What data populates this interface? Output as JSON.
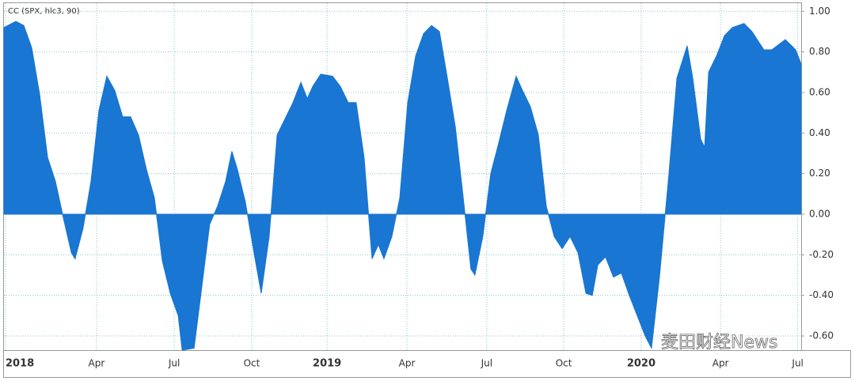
{
  "chart_data": {
    "type": "area",
    "title": "CC (SPX, hlc3, 90)",
    "watermark": "麦田财经News",
    "x": [
      -0.06,
      0.39,
      0.69,
      0.99,
      1.29,
      1.59,
      1.89,
      2.19,
      2.49,
      2.63,
      2.93,
      3.23,
      3.53,
      3.83,
      4.13,
      4.43,
      4.73,
      5.03,
      5.33,
      5.63,
      5.93,
      6.23,
      6.53,
      6.68,
      7.13,
      7.43,
      7.72,
      8.02,
      8.32,
      8.56,
      8.77,
      9.07,
      9.37,
      9.67,
      9.97,
      10.27,
      10.57,
      10.87,
      11.17,
      11.41,
      11.62,
      11.92,
      12.37,
      12.66,
      12.96,
      13.26,
      13.56,
      13.86,
      14.1,
      14.31,
      14.61,
      14.91,
      15.21,
      15.51,
      15.81,
      16.11,
      16.41,
      16.71,
      17.01,
      17.31,
      17.6,
      17.75,
      18.05,
      18.35,
      18.65,
      18.95,
      19.31,
      19.55,
      19.85,
      20.15,
      20.45,
      20.75,
      21.05,
      21.35,
      21.65,
      21.95,
      22.19,
      22.4,
      22.69,
      22.99,
      23.29,
      23.59,
      23.89,
      24.19,
      24.43,
      24.73,
      25.09,
      25.39,
      25.78,
      25.99,
      26.29,
      26.44,
      26.59,
      26.89,
      27.19,
      27.49,
      27.93,
      28.23,
      28.53,
      28.68,
      28.98,
      29.28,
      29.49,
      29.73,
      29.88,
      30.09
    ],
    "values": [
      0.92,
      0.95,
      0.93,
      0.82,
      0.59,
      0.28,
      0.16,
      -0.02,
      -0.19,
      -0.22,
      -0.07,
      0.16,
      0.51,
      0.68,
      0.61,
      0.48,
      0.48,
      0.39,
      0.22,
      0.08,
      -0.23,
      -0.39,
      -0.5,
      -0.67,
      -0.66,
      -0.35,
      -0.05,
      0.04,
      0.16,
      0.31,
      0.22,
      0.06,
      -0.17,
      -0.39,
      -0.11,
      0.39,
      0.47,
      0.55,
      0.65,
      0.57,
      0.63,
      0.69,
      0.68,
      0.63,
      0.55,
      0.55,
      0.28,
      -0.22,
      -0.15,
      -0.22,
      -0.11,
      0.08,
      0.55,
      0.78,
      0.89,
      0.93,
      0.9,
      0.67,
      0.43,
      0.08,
      -0.27,
      -0.3,
      -0.11,
      0.2,
      0.35,
      0.51,
      0.68,
      0.61,
      0.53,
      0.39,
      0.04,
      -0.11,
      -0.17,
      -0.11,
      -0.19,
      -0.39,
      -0.4,
      -0.25,
      -0.21,
      -0.31,
      -0.29,
      -0.4,
      -0.5,
      -0.6,
      -0.66,
      -0.31,
      0.2,
      0.67,
      0.83,
      0.67,
      0.37,
      0.33,
      0.7,
      0.78,
      0.88,
      0.92,
      0.94,
      0.9,
      0.84,
      0.81,
      0.81,
      0.84,
      0.86,
      0.83,
      0.81,
      0.74
    ],
    "color": "#1976d2",
    "xlim": [
      -0.06,
      30.09
    ],
    "ylim": [
      -0.67,
      1.04
    ],
    "xticks": [
      {
        "value": 0,
        "label": "2018"
      },
      {
        "value": 3.44,
        "label": "Apr"
      },
      {
        "value": 6.38,
        "label": "Jul"
      },
      {
        "value": 9.31,
        "label": "Oct"
      },
      {
        "value": 12.16,
        "label": "2019"
      },
      {
        "value": 15.18,
        "label": "Apr"
      },
      {
        "value": 18.2,
        "label": "Jul"
      },
      {
        "value": 21.11,
        "label": "Oct"
      },
      {
        "value": 24.04,
        "label": "2020"
      },
      {
        "value": 27.04,
        "label": "Apr"
      },
      {
        "value": 29.96,
        "label": "Jul"
      }
    ],
    "yticks": [
      {
        "value": 1,
        "label": "1.00"
      },
      {
        "value": 0.8,
        "label": "0.80"
      },
      {
        "value": 0.6,
        "label": "0.60"
      },
      {
        "value": 0.4,
        "label": "0.40"
      },
      {
        "value": 0.2,
        "label": "0.20"
      },
      {
        "value": 0,
        "label": "0.00"
      },
      {
        "value": -0.2,
        "label": "-0.20"
      },
      {
        "value": -0.4,
        "label": "-0.40"
      },
      {
        "value": -0.6,
        "label": "-0.60"
      }
    ],
    "grid": true
  }
}
